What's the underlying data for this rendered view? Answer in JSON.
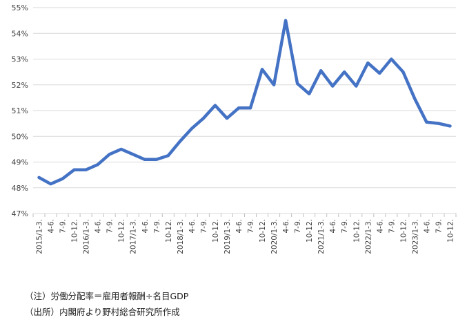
{
  "chart_data": {
    "type": "line",
    "title": "",
    "xlabel": "",
    "ylabel": "",
    "ylim": [
      47,
      55
    ],
    "yticks": [
      47,
      48,
      49,
      50,
      51,
      52,
      53,
      54,
      55
    ],
    "ytick_labels": [
      "47%",
      "48%",
      "49%",
      "50%",
      "51%",
      "52%",
      "53%",
      "54%",
      "55%"
    ],
    "grid": "horizontal",
    "legend": "none",
    "line_color": "#4472c4",
    "categories": [
      "2015/1-3.",
      "4-6.",
      "7-9.",
      "10-12.",
      "2016/1-3.",
      "4-6.",
      "7-9.",
      "10-12.",
      "2017/1-3.",
      "4-6.",
      "7-9.",
      "10-12.",
      "2018/1-3.",
      "4-6.",
      "7-9.",
      "10-12.",
      "2019/1-3.",
      "4-6.",
      "7-9.",
      "10-12.",
      "2020/1-3.",
      "4-6.",
      "7-9.",
      "10-12.",
      "2021/1-3.",
      "4-6.",
      "7-9.",
      "10-12.",
      "2022/1-3.",
      "4-6.",
      "7-9.",
      "10-12.",
      "2023/1-3.",
      "4-6.",
      "7-9.",
      "10-12."
    ],
    "values": [
      48.4,
      48.15,
      48.35,
      48.7,
      48.7,
      48.9,
      49.3,
      49.5,
      49.3,
      49.1,
      49.1,
      49.25,
      49.8,
      50.3,
      50.7,
      51.2,
      50.7,
      51.1,
      51.1,
      52.6,
      52.0,
      54.5,
      52.05,
      51.65,
      52.55,
      51.95,
      52.5,
      51.95,
      52.85,
      52.45,
      53.0,
      52.5,
      51.45,
      50.55,
      50.5,
      50.4
    ]
  },
  "notes": {
    "line1": "（注）労働分配率＝雇用者報酬÷名目GDP",
    "line2": "（出所）内閣府より野村総合研究所作成"
  }
}
